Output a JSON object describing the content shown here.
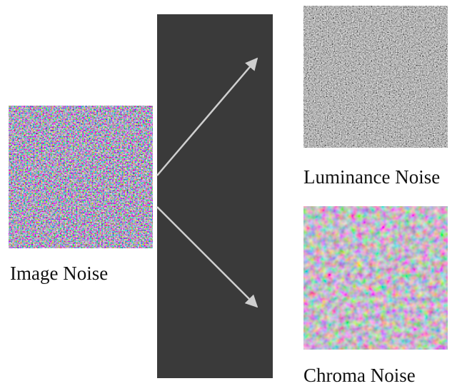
{
  "nodes": [
    {
      "label": "Image Noise"
    },
    {
      "label": "Luminance Noise"
    },
    {
      "label": "Chroma Noise"
    }
  ]
}
